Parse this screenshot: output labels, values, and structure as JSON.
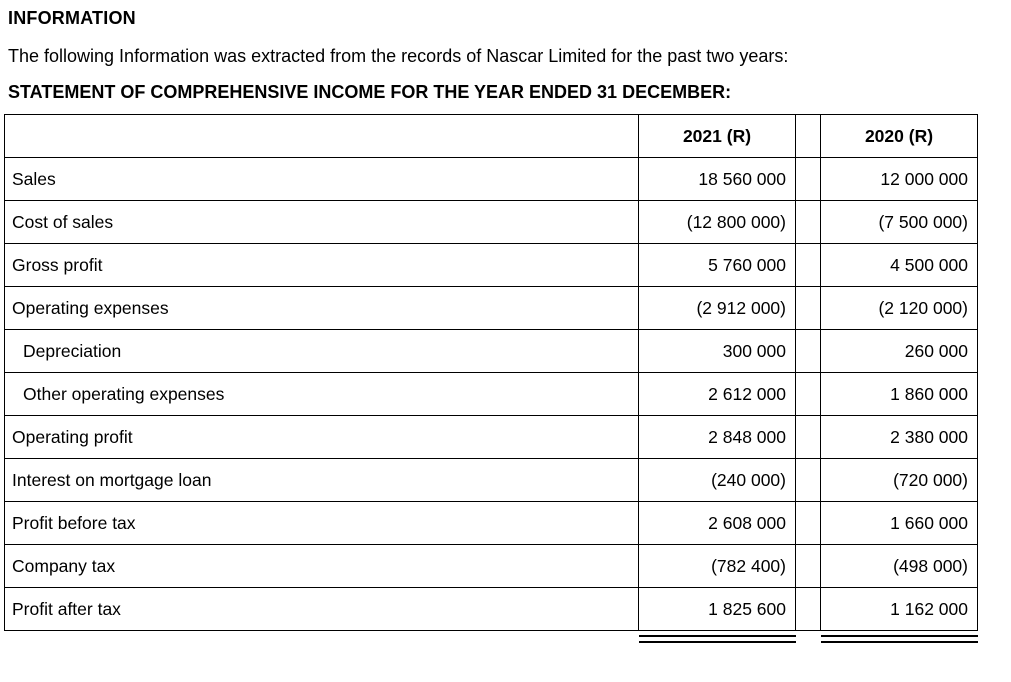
{
  "page": {
    "heading": "INFORMATION",
    "intro": "The following Information was extracted from the records of Nascar Limited for the past two years:",
    "statement_title": "STATEMENT OF COMPREHENSIVE INCOME FOR THE YEAR ENDED 31 DECEMBER:"
  },
  "colors": {
    "text": "#000000",
    "border": "#000000",
    "background": "#ffffff"
  },
  "table": {
    "columns": {
      "col_2021": "2021 (R)",
      "col_2020": "2020 (R)"
    },
    "rows": [
      {
        "label": "Sales",
        "y2021": "18 560 000",
        "y2020": "12 000 000"
      },
      {
        "label": "Cost of sales",
        "y2021": "(12 800 000)",
        "y2020": "(7 500 000)"
      },
      {
        "label": "Gross profit",
        "y2021": "5 760 000",
        "y2020": "4 500 000"
      },
      {
        "label": "Operating expenses",
        "y2021": "(2 912 000)",
        "y2020": "(2 120 000)"
      },
      {
        "label": "Depreciation",
        "y2021": "300 000",
        "y2020": "260 000"
      },
      {
        "label": "Other operating expenses",
        "y2021": "2 612 000",
        "y2020": "1 860 000"
      },
      {
        "label": "Operating profit",
        "y2021": "2 848 000",
        "y2020": "2 380 000"
      },
      {
        "label": "Interest on mortgage loan",
        "y2021": "(240 000)",
        "y2020": "(720 000)"
      },
      {
        "label": "Profit before tax",
        "y2021": "2 608 000",
        "y2020": "1 660 000"
      },
      {
        "label": "Company tax",
        "y2021": "(782 400)",
        "y2020": "(498 000)"
      },
      {
        "label": "Profit after tax",
        "y2021": "1 825 600",
        "y2020": "1 162 000"
      }
    ]
  }
}
